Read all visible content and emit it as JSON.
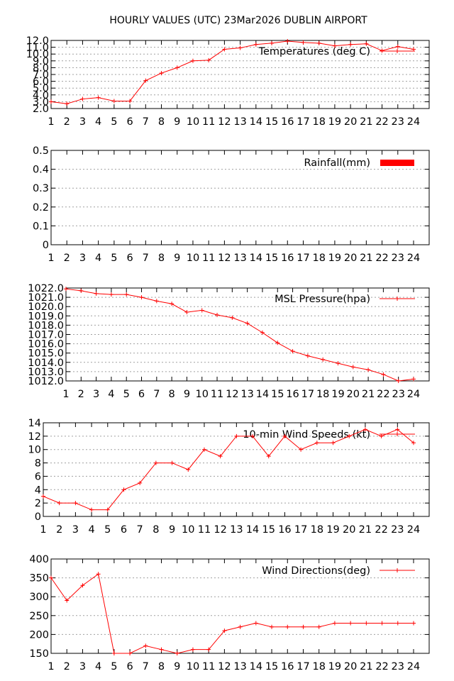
{
  "title": "HOURLY VALUES (UTC) 23Mar2026  DUBLIN AIRPORT",
  "colors": {
    "series": "#ff0000",
    "grid": "#a0a0a0",
    "frame": "#000000"
  },
  "chart_data": [
    {
      "type": "line",
      "x": [
        1,
        2,
        3,
        4,
        5,
        6,
        7,
        8,
        9,
        10,
        11,
        12,
        13,
        14,
        15,
        16,
        17,
        18,
        19,
        20,
        21,
        22,
        23,
        24
      ],
      "series": [
        {
          "name": "Temperatures (deg C)",
          "values": [
            3.0,
            2.7,
            3.4,
            3.6,
            3.1,
            3.1,
            6.1,
            7.2,
            8.0,
            9.0,
            9.1,
            10.7,
            10.9,
            11.4,
            11.6,
            11.9,
            11.7,
            11.6,
            11.2,
            11.4,
            11.5,
            10.5,
            11.1,
            10.7
          ]
        }
      ],
      "ylim": [
        2.0,
        12.0
      ],
      "yticks": [
        "2.0",
        "3.0",
        "4.0",
        "5.0",
        "6.0",
        "7.0",
        "8.0",
        "9.0",
        "10.0",
        "11.0",
        "12.0"
      ],
      "xticks": [
        "1",
        "2",
        "3",
        "4",
        "5",
        "6",
        "7",
        "8",
        "9",
        "10",
        "11",
        "12",
        "13",
        "14",
        "15",
        "16",
        "17",
        "18",
        "19",
        "20",
        "21",
        "22",
        "23",
        "24"
      ],
      "grid": true,
      "legend": "top-right"
    },
    {
      "type": "bar",
      "x": [
        1,
        2,
        3,
        4,
        5,
        6,
        7,
        8,
        9,
        10,
        11,
        12,
        13,
        14,
        15,
        16,
        17,
        18,
        19,
        20,
        21,
        22,
        23,
        24
      ],
      "series": [
        {
          "name": "Rainfall(mm)",
          "values": [
            0,
            0,
            0,
            0,
            0,
            0,
            0,
            0,
            0,
            0,
            0,
            0,
            0,
            0,
            0,
            0,
            0,
            0,
            0,
            0,
            0,
            0,
            0,
            0
          ]
        }
      ],
      "ylim": [
        0,
        0.5
      ],
      "yticks": [
        "0",
        "0.1",
        "0.2",
        "0.3",
        "0.4",
        "0.5"
      ],
      "xticks": [
        "1",
        "2",
        "3",
        "4",
        "5",
        "6",
        "7",
        "8",
        "9",
        "10",
        "11",
        "12",
        "13",
        "14",
        "15",
        "16",
        "17",
        "18",
        "19",
        "20",
        "21",
        "22",
        "23",
        "24"
      ],
      "grid": true,
      "legend": "top-right"
    },
    {
      "type": "line",
      "x": [
        1,
        2,
        3,
        4,
        5,
        6,
        7,
        8,
        9,
        10,
        11,
        12,
        13,
        14,
        15,
        16,
        17,
        18,
        19,
        20,
        21,
        22,
        23,
        24
      ],
      "series": [
        {
          "name": "MSL Pressure(hpa)",
          "values": [
            1021.9,
            1021.7,
            1021.4,
            1021.3,
            1021.3,
            1021.0,
            1020.6,
            1020.3,
            1019.4,
            1019.6,
            1019.1,
            1018.8,
            1018.2,
            1017.2,
            1016.1,
            1015.2,
            1014.7,
            1014.3,
            1013.9,
            1013.5,
            1013.2,
            1012.7,
            1012.0,
            1012.2
          ]
        }
      ],
      "ylim": [
        1012.0,
        1022.0
      ],
      "yticks": [
        "1012.0",
        "1013.0",
        "1014.0",
        "1015.0",
        "1016.0",
        "1017.0",
        "1018.0",
        "1019.0",
        "1020.0",
        "1021.0",
        "1022.0"
      ],
      "xticks": [
        "1",
        "2",
        "3",
        "4",
        "5",
        "6",
        "7",
        "8",
        "9",
        "10",
        "11",
        "12",
        "13",
        "14",
        "15",
        "16",
        "17",
        "18",
        "19",
        "20",
        "21",
        "22",
        "23",
        "24"
      ],
      "grid": true,
      "legend": "top-right"
    },
    {
      "type": "line",
      "x": [
        1,
        2,
        3,
        4,
        5,
        6,
        7,
        8,
        9,
        10,
        11,
        12,
        13,
        14,
        15,
        16,
        17,
        18,
        19,
        20,
        21,
        22,
        23,
        24
      ],
      "series": [
        {
          "name": "10-min Wind Speeds (kt)",
          "values": [
            3,
            2,
            2,
            1,
            1,
            4,
            5,
            8,
            8,
            7,
            10,
            9,
            12,
            12,
            9,
            12,
            10,
            11,
            11,
            12,
            13,
            12,
            13,
            11
          ]
        }
      ],
      "ylim": [
        0,
        14
      ],
      "yticks": [
        "0",
        "2",
        "4",
        "6",
        "8",
        "10",
        "12",
        "14"
      ],
      "xticks": [
        "1",
        "2",
        "3",
        "4",
        "5",
        "6",
        "7",
        "8",
        "9",
        "10",
        "11",
        "12",
        "13",
        "14",
        "15",
        "16",
        "17",
        "18",
        "19",
        "20",
        "21",
        "22",
        "23",
        "24"
      ],
      "grid": true,
      "legend": "top-right"
    },
    {
      "type": "line",
      "x": [
        1,
        2,
        3,
        4,
        5,
        6,
        7,
        8,
        9,
        10,
        11,
        12,
        13,
        14,
        15,
        16,
        17,
        18,
        19,
        20,
        21,
        22,
        23,
        24
      ],
      "series": [
        {
          "name": "Wind Directions(deg)",
          "values": [
            350,
            290,
            330,
            360,
            150,
            150,
            170,
            160,
            150,
            160,
            160,
            210,
            220,
            230,
            220,
            220,
            220,
            220,
            230,
            230,
            230,
            230,
            230,
            230
          ]
        }
      ],
      "ylim": [
        150,
        400
      ],
      "yticks": [
        "150",
        "200",
        "250",
        "300",
        "350",
        "400"
      ],
      "xticks": [
        "1",
        "2",
        "3",
        "4",
        "5",
        "6",
        "7",
        "8",
        "9",
        "10",
        "11",
        "12",
        "13",
        "14",
        "15",
        "16",
        "17",
        "18",
        "19",
        "20",
        "21",
        "22",
        "23",
        "24"
      ],
      "grid": true,
      "legend": "top-right"
    }
  ]
}
